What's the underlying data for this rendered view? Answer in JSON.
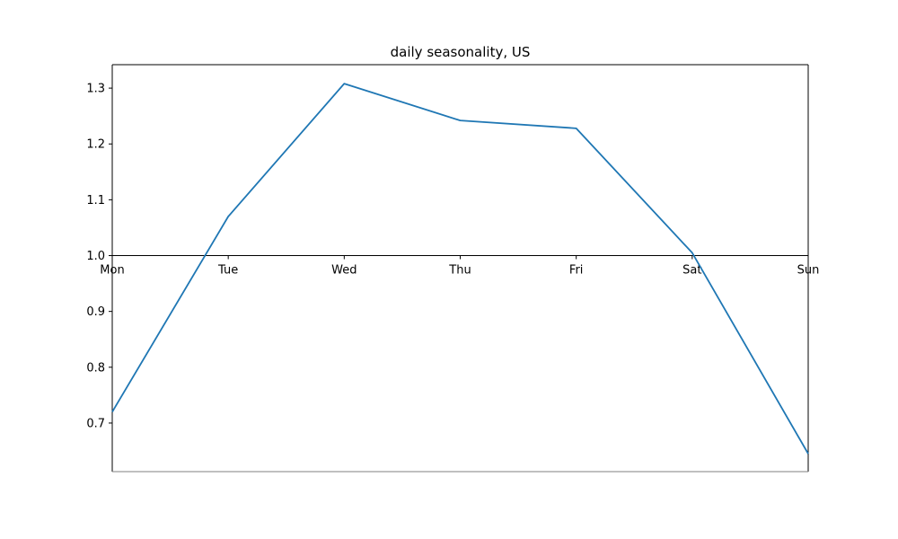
{
  "chart_data": {
    "type": "line",
    "title": "daily seasonality, US",
    "xlabel": "",
    "ylabel": "",
    "categories": [
      "Mon",
      "Tue",
      "Wed",
      "Thu",
      "Fri",
      "Sat",
      "Sun"
    ],
    "series": [
      {
        "values": [
          0.72,
          1.07,
          1.308,
          1.242,
          1.228,
          1.005,
          0.645
        ],
        "color": "#1f77b4"
      }
    ],
    "ylim": [
      0.613,
      1.342
    ],
    "yticks": [
      0.7,
      0.8,
      0.9,
      1.0,
      1.1,
      1.2,
      1.3
    ],
    "ytick_labels": [
      "0.7",
      "0.8",
      "0.9",
      "1.0",
      "1.1",
      "1.2",
      "1.3"
    ],
    "baseline": 1.0,
    "grid": false,
    "legend": "none"
  }
}
